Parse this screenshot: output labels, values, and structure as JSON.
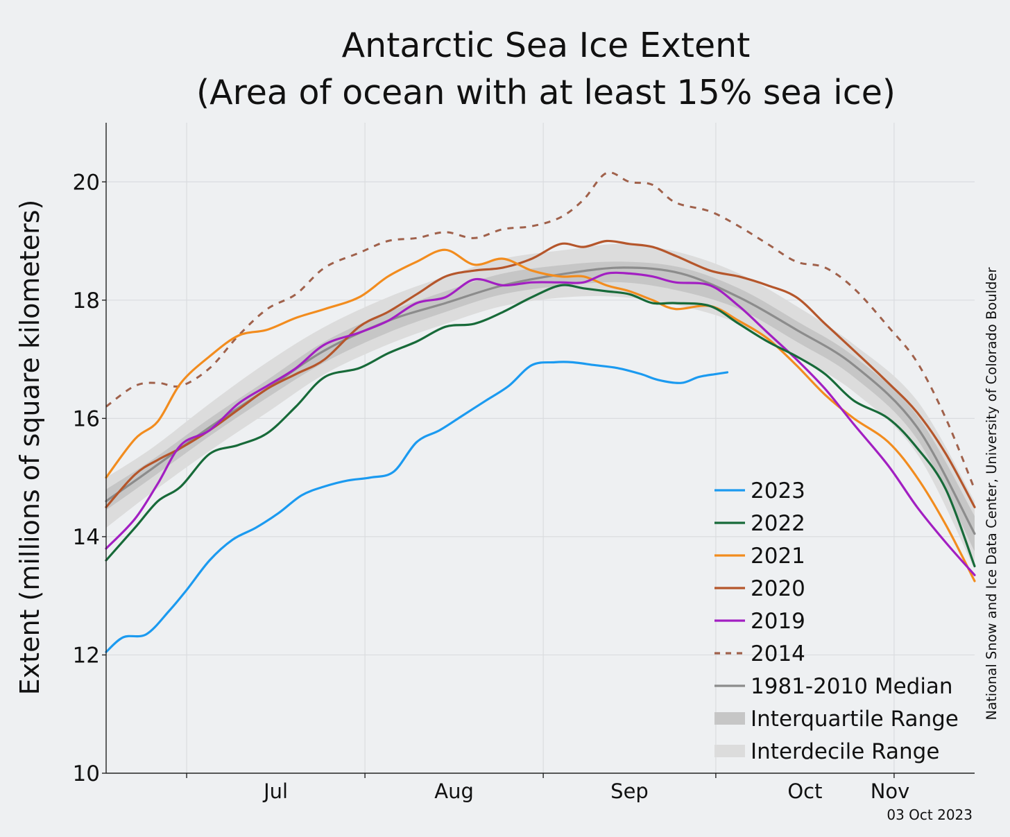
{
  "chart_data": {
    "type": "line",
    "title": "Antarctic Sea Ice Extent",
    "subtitle": "(Area of ocean with at least 15% sea ice)",
    "ylabel": "Extent (millions of square kilometers)",
    "xlabel": "",
    "ylim": [
      10,
      21
    ],
    "yticks": [
      10,
      12,
      14,
      16,
      18,
      20
    ],
    "xlim": [
      "2023-06-17",
      "2023-11-15"
    ],
    "month_ticks": [
      {
        "label": "Jul",
        "date": "2023-07-01"
      },
      {
        "label": "Aug",
        "date": "2023-08-01"
      },
      {
        "label": "Sep",
        "date": "2023-09-01"
      },
      {
        "label": "Oct",
        "date": "2023-10-01"
      },
      {
        "label": "Nov",
        "date": "2023-11-01"
      }
    ],
    "grid": true,
    "legend_position": "bottom-right",
    "credit": "National Snow and Ice Data Center, University of Colorado Boulder",
    "date_stamp": "03 Oct 2023",
    "bands": [
      {
        "name": "Interdecile Range",
        "color": "#dcdcdc",
        "x": [
          "06-17",
          "06-25",
          "07-05",
          "07-15",
          "07-25",
          "08-05",
          "08-15",
          "08-25",
          "09-05",
          "09-15",
          "09-25",
          "10-05",
          "10-15",
          "10-25",
          "11-05",
          "11-15"
        ],
        "lower": [
          14.15,
          14.75,
          15.45,
          16.1,
          16.75,
          17.25,
          17.6,
          17.9,
          18.05,
          18.05,
          17.9,
          17.6,
          17.05,
          16.45,
          15.4,
          13.45
        ],
        "upper": [
          15.0,
          15.5,
          16.25,
          16.95,
          17.55,
          18.05,
          18.4,
          18.7,
          18.85,
          18.95,
          18.8,
          18.45,
          17.9,
          17.25,
          16.3,
          14.6
        ]
      },
      {
        "name": "Interquartile Range",
        "color": "#c6c6c6",
        "x": [
          "06-17",
          "06-25",
          "07-05",
          "07-15",
          "07-25",
          "08-05",
          "08-15",
          "08-25",
          "09-05",
          "09-15",
          "09-25",
          "10-05",
          "10-15",
          "10-25",
          "11-05",
          "11-15"
        ],
        "lower": [
          14.45,
          15.0,
          15.7,
          16.35,
          16.95,
          17.45,
          17.8,
          18.1,
          18.25,
          18.3,
          18.15,
          17.85,
          17.3,
          16.7,
          15.65,
          13.75
        ],
        "upper": [
          14.8,
          15.3,
          16.0,
          16.65,
          17.3,
          17.8,
          18.15,
          18.45,
          18.6,
          18.65,
          18.55,
          18.2,
          17.65,
          17.05,
          16.05,
          14.35
        ]
      }
    ],
    "series": [
      {
        "name": "1981-2010 Median",
        "color": "#8c8c8c",
        "style": "solid",
        "x": [
          "06-17",
          "06-25",
          "07-05",
          "07-15",
          "07-25",
          "08-05",
          "08-15",
          "08-25",
          "09-05",
          "09-15",
          "09-25",
          "10-05",
          "10-15",
          "10-25",
          "11-05",
          "11-15"
        ],
        "values": [
          14.6,
          15.15,
          15.85,
          16.5,
          17.15,
          17.65,
          17.95,
          18.25,
          18.45,
          18.55,
          18.45,
          18.05,
          17.5,
          16.9,
          15.85,
          14.05
        ]
      },
      {
        "name": "2014",
        "color": "#a0614b",
        "style": "dashed",
        "x": [
          "06-17",
          "06-22",
          "06-26",
          "06-30",
          "07-05",
          "07-10",
          "07-15",
          "07-20",
          "07-25",
          "07-31",
          "08-05",
          "08-10",
          "08-15",
          "08-20",
          "08-25",
          "08-30",
          "09-04",
          "09-08",
          "09-12",
          "09-16",
          "09-20",
          "09-24",
          "09-30",
          "10-05",
          "10-10",
          "10-15",
          "10-20",
          "10-25",
          "10-31",
          "11-05",
          "11-10",
          "11-15"
        ],
        "values": [
          16.2,
          16.55,
          16.6,
          16.55,
          16.85,
          17.4,
          17.85,
          18.1,
          18.55,
          18.8,
          19.0,
          19.05,
          19.15,
          19.05,
          19.2,
          19.25,
          19.4,
          19.7,
          20.15,
          20.0,
          19.95,
          19.65,
          19.5,
          19.25,
          18.95,
          18.65,
          18.55,
          18.2,
          17.55,
          16.95,
          16.0,
          14.8
        ]
      },
      {
        "name": "2020",
        "color": "#b5562b",
        "style": "solid",
        "x": [
          "06-17",
          "06-22",
          "06-26",
          "06-30",
          "07-05",
          "07-10",
          "07-15",
          "07-20",
          "07-25",
          "07-31",
          "08-05",
          "08-10",
          "08-15",
          "08-20",
          "08-25",
          "08-30",
          "09-04",
          "09-08",
          "09-12",
          "09-16",
          "09-20",
          "09-24",
          "09-30",
          "10-05",
          "10-10",
          "10-15",
          "10-20",
          "10-25",
          "10-31",
          "11-05",
          "11-10",
          "11-15"
        ],
        "values": [
          14.5,
          15.05,
          15.3,
          15.5,
          15.8,
          16.15,
          16.5,
          16.75,
          17.0,
          17.55,
          17.8,
          18.1,
          18.4,
          18.5,
          18.55,
          18.7,
          18.95,
          18.9,
          19.0,
          18.95,
          18.9,
          18.75,
          18.5,
          18.4,
          18.25,
          18.05,
          17.6,
          17.15,
          16.6,
          16.1,
          15.4,
          14.5
        ]
      },
      {
        "name": "2021",
        "color": "#f28c1e",
        "style": "solid",
        "x": [
          "06-17",
          "06-22",
          "06-26",
          "06-30",
          "07-05",
          "07-10",
          "07-15",
          "07-20",
          "07-25",
          "07-31",
          "08-05",
          "08-10",
          "08-15",
          "08-20",
          "08-25",
          "08-30",
          "09-04",
          "09-08",
          "09-12",
          "09-16",
          "09-20",
          "09-24",
          "09-30",
          "10-05",
          "10-10",
          "10-15",
          "10-20",
          "10-25",
          "10-31",
          "11-05",
          "11-10",
          "11-15"
        ],
        "values": [
          15.0,
          15.65,
          15.95,
          16.6,
          17.05,
          17.4,
          17.5,
          17.7,
          17.85,
          18.05,
          18.4,
          18.65,
          18.85,
          18.6,
          18.7,
          18.5,
          18.4,
          18.4,
          18.25,
          18.15,
          18.0,
          17.85,
          17.9,
          17.65,
          17.35,
          16.9,
          16.4,
          16.0,
          15.6,
          15.0,
          14.2,
          13.25
        ]
      },
      {
        "name": "2019",
        "color": "#a21fc2",
        "style": "solid",
        "x": [
          "06-17",
          "06-22",
          "06-26",
          "06-30",
          "07-05",
          "07-10",
          "07-15",
          "07-20",
          "07-25",
          "07-31",
          "08-05",
          "08-10",
          "08-15",
          "08-20",
          "08-25",
          "08-30",
          "09-04",
          "09-08",
          "09-12",
          "09-16",
          "09-20",
          "09-24",
          "09-30",
          "10-05",
          "10-10",
          "10-15",
          "10-20",
          "10-25",
          "10-31",
          "11-05",
          "11-10",
          "11-15"
        ],
        "values": [
          13.8,
          14.3,
          14.9,
          15.55,
          15.8,
          16.25,
          16.55,
          16.85,
          17.25,
          17.45,
          17.65,
          17.95,
          18.05,
          18.35,
          18.25,
          18.3,
          18.3,
          18.3,
          18.45,
          18.45,
          18.4,
          18.3,
          18.25,
          17.9,
          17.45,
          17.0,
          16.5,
          15.9,
          15.2,
          14.5,
          13.9,
          13.35
        ]
      },
      {
        "name": "2022",
        "color": "#176a39",
        "style": "solid",
        "x": [
          "06-17",
          "06-22",
          "06-26",
          "06-30",
          "07-05",
          "07-10",
          "07-15",
          "07-20",
          "07-25",
          "07-31",
          "08-05",
          "08-10",
          "08-15",
          "08-20",
          "08-25",
          "08-30",
          "09-04",
          "09-08",
          "09-12",
          "09-16",
          "09-20",
          "09-24",
          "09-30",
          "10-05",
          "10-10",
          "10-15",
          "10-20",
          "10-25",
          "10-31",
          "11-05",
          "11-10",
          "11-15"
        ],
        "values": [
          13.6,
          14.15,
          14.6,
          14.85,
          15.4,
          15.55,
          15.75,
          16.2,
          16.7,
          16.85,
          17.1,
          17.3,
          17.55,
          17.6,
          17.8,
          18.05,
          18.25,
          18.2,
          18.15,
          18.1,
          17.95,
          17.95,
          17.9,
          17.6,
          17.3,
          17.05,
          16.75,
          16.3,
          16.0,
          15.5,
          14.8,
          13.5
        ]
      },
      {
        "name": "2023",
        "color": "#1b9af0",
        "style": "solid",
        "x": [
          "06-17",
          "06-20",
          "06-24",
          "06-28",
          "07-01",
          "07-05",
          "07-09",
          "07-13",
          "07-17",
          "07-21",
          "07-25",
          "07-29",
          "08-02",
          "08-06",
          "08-10",
          "08-14",
          "08-18",
          "08-22",
          "08-26",
          "08-30",
          "09-03",
          "09-06",
          "09-10",
          "09-14",
          "09-18",
          "09-21",
          "09-25",
          "09-28",
          "10-01",
          "10-03"
        ],
        "values": [
          12.05,
          12.3,
          12.35,
          12.75,
          13.1,
          13.6,
          13.95,
          14.15,
          14.4,
          14.7,
          14.85,
          14.95,
          15.0,
          15.1,
          15.6,
          15.8,
          16.05,
          16.3,
          16.55,
          16.9,
          16.95,
          16.95,
          16.9,
          16.85,
          16.75,
          16.65,
          16.6,
          16.7,
          16.75,
          16.78
        ]
      }
    ],
    "legend": [
      {
        "label": "2023",
        "kind": "line",
        "color": "#1b9af0"
      },
      {
        "label": "2022",
        "kind": "line",
        "color": "#176a39"
      },
      {
        "label": "2021",
        "kind": "line",
        "color": "#f28c1e"
      },
      {
        "label": "2020",
        "kind": "line",
        "color": "#b5562b"
      },
      {
        "label": "2019",
        "kind": "line",
        "color": "#a21fc2"
      },
      {
        "label": "2014",
        "kind": "dashed",
        "color": "#a0614b"
      },
      {
        "label": "1981-2010 Median",
        "kind": "line",
        "color": "#8c8c8c"
      },
      {
        "label": "Interquartile Range",
        "kind": "band",
        "color": "#c6c6c6"
      },
      {
        "label": "Interdecile Range",
        "kind": "band",
        "color": "#dcdcdc"
      }
    ]
  }
}
